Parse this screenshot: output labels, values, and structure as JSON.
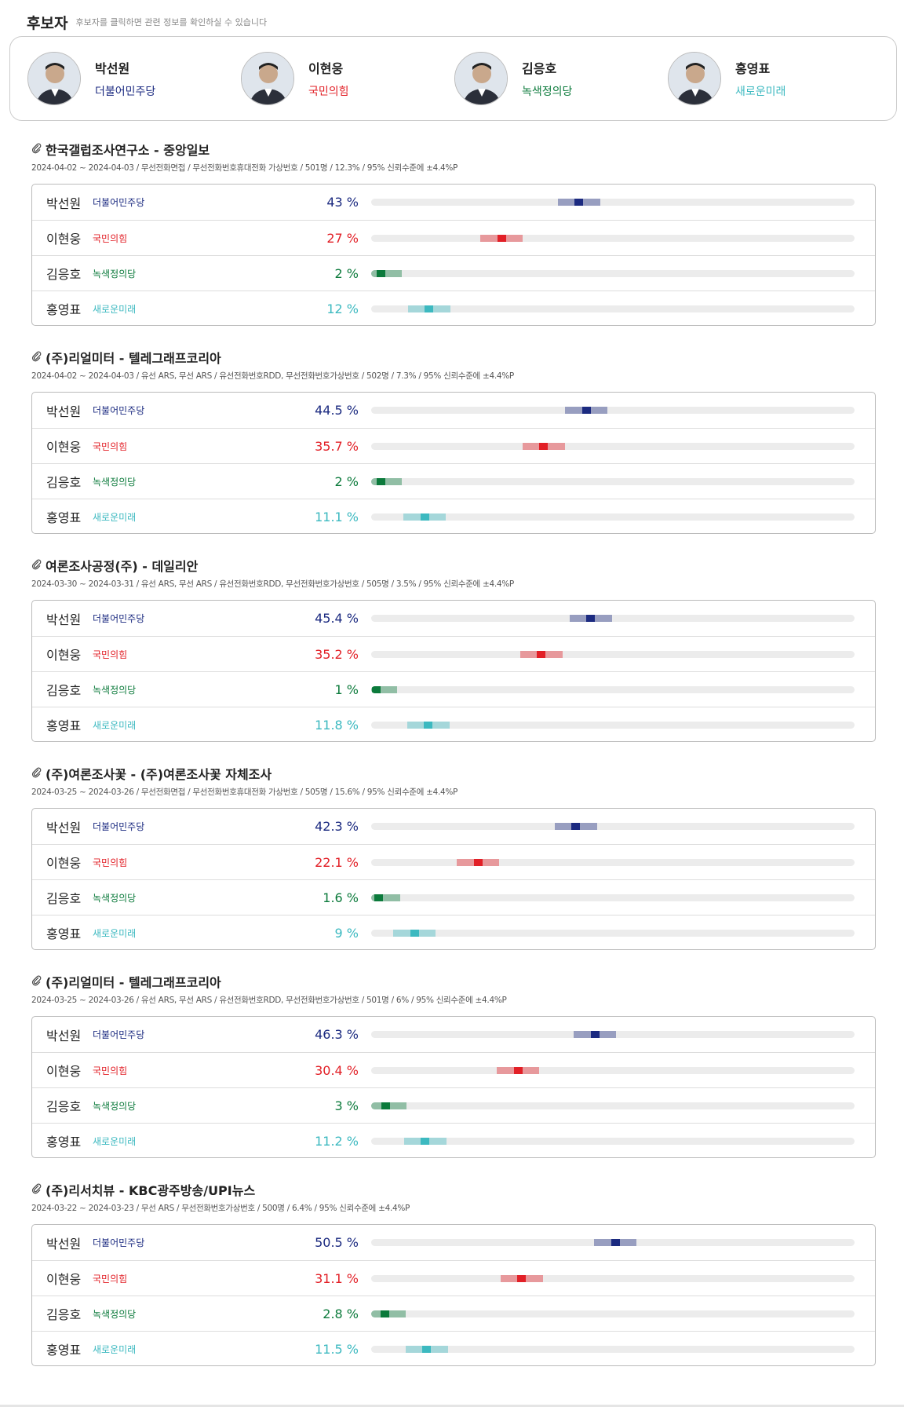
{
  "header": {
    "title": "후보자",
    "hint": "후보자를 클릭하면 관련 정보를 확인하실 수 있습니다"
  },
  "candidates": [
    {
      "name": "박선원",
      "party": "더불어민주당",
      "color": "#1b2a80"
    },
    {
      "name": "이현웅",
      "party": "국민의힘",
      "color": "#e21f26"
    },
    {
      "name": "김응호",
      "party": "녹색정의당",
      "color": "#0b7a3b"
    },
    {
      "name": "홍영표",
      "party": "새로운미래",
      "color": "#3cb9c0"
    }
  ],
  "polls": [
    {
      "title": "한국갤럽조사연구소 - 중앙일보",
      "description": "2024-04-02 ~ 2024-04-03 / 무선전화면접 / 무선전화번호휴대전화 가상번호 / 501명 / 12.3% / 95% 신뢰수준에 ±4.4%P",
      "results": [
        {
          "value": 43,
          "label": "43 %"
        },
        {
          "value": 27,
          "label": "27 %"
        },
        {
          "value": 2,
          "label": "2 %"
        },
        {
          "value": 12,
          "label": "12 %"
        }
      ]
    },
    {
      "title": "(주)리얼미터 - 텔레그래프코리아",
      "description": "2024-04-02 ~ 2024-04-03 / 유선 ARS, 무선 ARS / 유선전화번호RDD, 무선전화번호가상번호 / 502명 / 7.3% / 95% 신뢰수준에 ±4.4%P",
      "results": [
        {
          "value": 44.5,
          "label": "44.5 %"
        },
        {
          "value": 35.7,
          "label": "35.7 %"
        },
        {
          "value": 2,
          "label": "2 %"
        },
        {
          "value": 11.1,
          "label": "11.1 %"
        }
      ]
    },
    {
      "title": "여론조사공정(주) - 데일리안",
      "description": "2024-03-30 ~ 2024-03-31 / 유선 ARS, 무선 ARS / 유선전화번호RDD, 무선전화번호가상번호 / 505명 / 3.5% / 95% 신뢰수준에 ±4.4%P",
      "results": [
        {
          "value": 45.4,
          "label": "45.4 %"
        },
        {
          "value": 35.2,
          "label": "35.2 %"
        },
        {
          "value": 1,
          "label": "1 %"
        },
        {
          "value": 11.8,
          "label": "11.8 %"
        }
      ]
    },
    {
      "title": "(주)여론조사꽃 - (주)여론조사꽃 자체조사",
      "description": "2024-03-25 ~ 2024-03-26 / 무선전화면접 / 무선전화번호휴대전화 가상번호 / 505명 / 15.6% / 95% 신뢰수준에 ±4.4%P",
      "results": [
        {
          "value": 42.3,
          "label": "42.3 %"
        },
        {
          "value": 22.1,
          "label": "22.1 %"
        },
        {
          "value": 1.6,
          "label": "1.6 %"
        },
        {
          "value": 9,
          "label": "9 %"
        }
      ]
    },
    {
      "title": "(주)리얼미터 - 텔레그래프코리아",
      "description": "2024-03-25 ~ 2024-03-26 / 유선 ARS, 무선 ARS / 유선전화번호RDD, 무선전화번호가상번호 / 501명 / 6% / 95% 신뢰수준에 ±4.4%P",
      "results": [
        {
          "value": 46.3,
          "label": "46.3 %"
        },
        {
          "value": 30.4,
          "label": "30.4 %"
        },
        {
          "value": 3,
          "label": "3 %"
        },
        {
          "value": 11.2,
          "label": "11.2 %"
        }
      ]
    },
    {
      "title": "(주)리서치뷰 - KBC광주방송/UPI뉴스",
      "description": "2024-03-22 ~ 2024-03-23 / 무선 ARS / 무선전화번호가상번호 / 500명 / 6.4% / 95% 신뢰수준에 ±4.4%P",
      "results": [
        {
          "value": 50.5,
          "label": "50.5 %"
        },
        {
          "value": 31.1,
          "label": "31.1 %"
        },
        {
          "value": 2.8,
          "label": "2.8 %"
        },
        {
          "value": 11.5,
          "label": "11.5 %"
        }
      ]
    }
  ]
}
